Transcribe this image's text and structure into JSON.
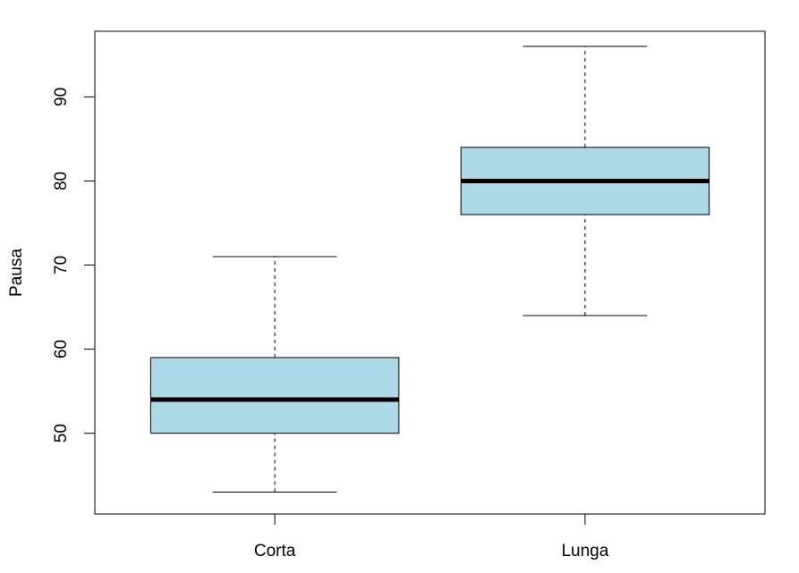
{
  "chart_data": {
    "type": "boxplot",
    "title": "",
    "xlabel": "",
    "ylabel": "Pausa",
    "ylim": [
      40.4,
      97.8
    ],
    "yticks": [
      50,
      60,
      70,
      80,
      90
    ],
    "grid": false,
    "box_fill": "#ADD8E6",
    "categories": [
      "Corta",
      "Lunga"
    ],
    "boxes": [
      {
        "category": "Corta",
        "whisker_low": 43,
        "q1": 50,
        "median": 54,
        "q3": 59,
        "whisker_high": 71
      },
      {
        "category": "Lunga",
        "whisker_low": 64,
        "q1": 76,
        "median": 80,
        "q3": 84,
        "whisker_high": 96
      }
    ]
  }
}
